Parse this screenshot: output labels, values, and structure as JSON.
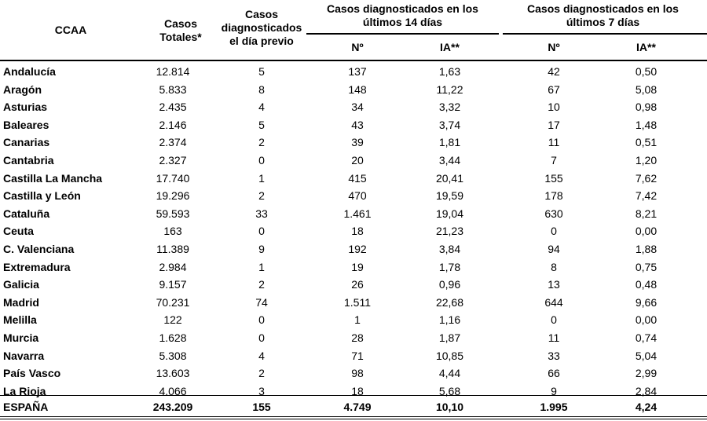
{
  "header": {
    "ccaa": "CCAA",
    "casos_totales": "Casos Totales*",
    "diag_previo": "Casos diagnosticados el día previo",
    "ultimos_14": "Casos diagnosticados en los últimos 14 días",
    "ultimos_7": "Casos diagnosticados en los últimos 7 días",
    "num_14": "Nº",
    "ia_14": "IA**",
    "num_7": "Nº",
    "ia_7": "IA**"
  },
  "rows": [
    {
      "name": "Andalucía",
      "total": "12.814",
      "prev": "5",
      "n14": "137",
      "ia14": "1,63",
      "n7": "42",
      "ia7": "0,50"
    },
    {
      "name": "Aragón",
      "total": "5.833",
      "prev": "8",
      "n14": "148",
      "ia14": "11,22",
      "n7": "67",
      "ia7": "5,08"
    },
    {
      "name": "Asturias",
      "total": "2.435",
      "prev": "4",
      "n14": "34",
      "ia14": "3,32",
      "n7": "10",
      "ia7": "0,98"
    },
    {
      "name": "Baleares",
      "total": "2.146",
      "prev": "5",
      "n14": "43",
      "ia14": "3,74",
      "n7": "17",
      "ia7": "1,48"
    },
    {
      "name": "Canarias",
      "total": "2.374",
      "prev": "2",
      "n14": "39",
      "ia14": "1,81",
      "n7": "11",
      "ia7": "0,51"
    },
    {
      "name": "Cantabria",
      "total": "2.327",
      "prev": "0",
      "n14": "20",
      "ia14": "3,44",
      "n7": "7",
      "ia7": "1,20"
    },
    {
      "name": "Castilla La Mancha",
      "total": "17.740",
      "prev": "1",
      "n14": "415",
      "ia14": "20,41",
      "n7": "155",
      "ia7": "7,62"
    },
    {
      "name": "Castilla y León",
      "total": "19.296",
      "prev": "2",
      "n14": "470",
      "ia14": "19,59",
      "n7": "178",
      "ia7": "7,42"
    },
    {
      "name": "Cataluña",
      "total": "59.593",
      "prev": "33",
      "n14": "1.461",
      "ia14": "19,04",
      "n7": "630",
      "ia7": "8,21"
    },
    {
      "name": "Ceuta",
      "total": "163",
      "prev": "0",
      "n14": "18",
      "ia14": "21,23",
      "n7": "0",
      "ia7": "0,00"
    },
    {
      "name": "C. Valenciana",
      "total": "11.389",
      "prev": "9",
      "n14": "192",
      "ia14": "3,84",
      "n7": "94",
      "ia7": "1,88"
    },
    {
      "name": "Extremadura",
      "total": "2.984",
      "prev": "1",
      "n14": "19",
      "ia14": "1,78",
      "n7": "8",
      "ia7": "0,75"
    },
    {
      "name": "Galicia",
      "total": "9.157",
      "prev": "2",
      "n14": "26",
      "ia14": "0,96",
      "n7": "13",
      "ia7": "0,48"
    },
    {
      "name": "Madrid",
      "total": "70.231",
      "prev": "74",
      "n14": "1.511",
      "ia14": "22,68",
      "n7": "644",
      "ia7": "9,66"
    },
    {
      "name": "Melilla",
      "total": "122",
      "prev": "0",
      "n14": "1",
      "ia14": "1,16",
      "n7": "0",
      "ia7": "0,00"
    },
    {
      "name": "Murcia",
      "total": "1.628",
      "prev": "0",
      "n14": "28",
      "ia14": "1,87",
      "n7": "11",
      "ia7": "0,74"
    },
    {
      "name": "Navarra",
      "total": "5.308",
      "prev": "4",
      "n14": "71",
      "ia14": "10,85",
      "n7": "33",
      "ia7": "5,04"
    },
    {
      "name": "País Vasco",
      "total": "13.603",
      "prev": "2",
      "n14": "98",
      "ia14": "4,44",
      "n7": "66",
      "ia7": "2,99"
    },
    {
      "name": "La Rioja",
      "total": "4.066",
      "prev": "3",
      "n14": "18",
      "ia14": "5,68",
      "n7": "9",
      "ia7": "2,84"
    }
  ],
  "total": {
    "name": "ESPAÑA",
    "total": "243.209",
    "prev": "155",
    "n14": "4.749",
    "ia14": "10,10",
    "n7": "1.995",
    "ia7": "4,24"
  }
}
